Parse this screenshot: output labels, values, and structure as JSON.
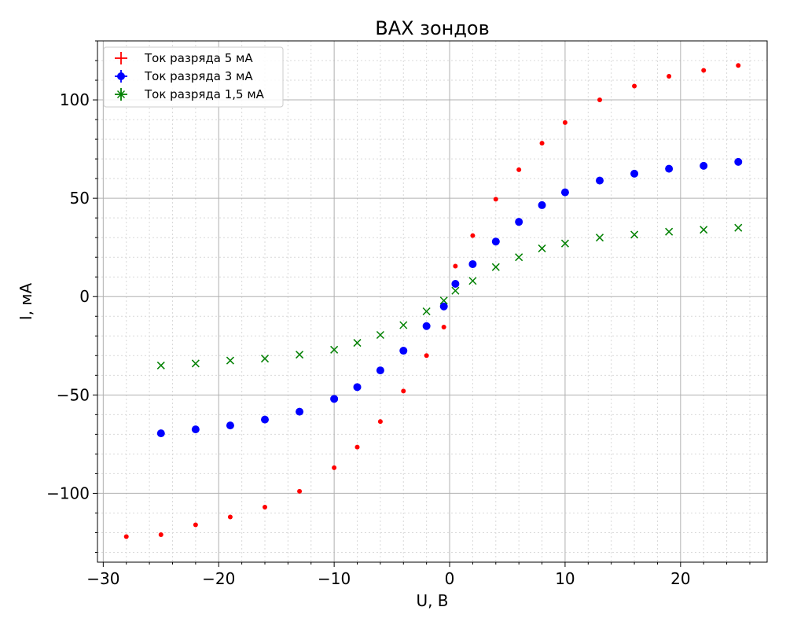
{
  "chart_data": {
    "type": "scatter",
    "title": "ВАХ зондов",
    "xlabel": "U, В",
    "ylabel": "I, мА",
    "xlim": [
      -30.5,
      27.5
    ],
    "ylim": [
      -135,
      130
    ],
    "x_ticks": [
      -30,
      -20,
      -10,
      0,
      10,
      20
    ],
    "x_tick_labels": [
      "−30",
      "−20",
      "−10",
      "0",
      "10",
      "20"
    ],
    "y_ticks": [
      -100,
      -50,
      0,
      50,
      100
    ],
    "y_tick_labels": [
      "−100",
      "−50",
      "0",
      "50",
      "100"
    ],
    "grid": true,
    "minor_grid": true,
    "legend_position": "top-left",
    "series": [
      {
        "name": "Ток разряда 5 мА",
        "color": "#ff0000",
        "marker": "small-dot",
        "legend_marker": "plus-errorbar",
        "points": [
          [
            -28,
            -122
          ],
          [
            -25,
            -121
          ],
          [
            -22,
            -116
          ],
          [
            -19,
            -112
          ],
          [
            -16,
            -107
          ],
          [
            -13,
            -99
          ],
          [
            -10,
            -87
          ],
          [
            -8,
            -76.5
          ],
          [
            -6,
            -63.5
          ],
          [
            -4,
            -48
          ],
          [
            -2,
            -30
          ],
          [
            -0.5,
            -15.5
          ],
          [
            0.5,
            15.5
          ],
          [
            2,
            31
          ],
          [
            4,
            49.5
          ],
          [
            6,
            64.5
          ],
          [
            8,
            78
          ],
          [
            10,
            88.5
          ],
          [
            13,
            100
          ],
          [
            16,
            107
          ],
          [
            19,
            112
          ],
          [
            22,
            115
          ],
          [
            25,
            117.5
          ]
        ]
      },
      {
        "name": "Ток разряда 3 мА",
        "color": "#0000ff",
        "marker": "circle",
        "legend_marker": "circle-errorbar",
        "points": [
          [
            -25,
            -69.5
          ],
          [
            -22,
            -67.5
          ],
          [
            -19,
            -65.5
          ],
          [
            -16,
            -62.5
          ],
          [
            -13,
            -58.5
          ],
          [
            -10,
            -52
          ],
          [
            -8,
            -46
          ],
          [
            -6,
            -37.5
          ],
          [
            -4,
            -27.5
          ],
          [
            -2,
            -15
          ],
          [
            -0.5,
            -5
          ],
          [
            0.5,
            6.5
          ],
          [
            2,
            16.5
          ],
          [
            4,
            28
          ],
          [
            6,
            38
          ],
          [
            8,
            46.5
          ],
          [
            10,
            53
          ],
          [
            13,
            59
          ],
          [
            16,
            62.5
          ],
          [
            19,
            65
          ],
          [
            22,
            66.5
          ],
          [
            25,
            68.5
          ]
        ]
      },
      {
        "name": "Ток разряда 1,5 мА",
        "color": "#008000",
        "marker": "x",
        "legend_marker": "x-errorbar",
        "points": [
          [
            -25,
            -35
          ],
          [
            -22,
            -34
          ],
          [
            -19,
            -32.5
          ],
          [
            -16,
            -31.5
          ],
          [
            -13,
            -29.5
          ],
          [
            -10,
            -27
          ],
          [
            -8,
            -23.5
          ],
          [
            -6,
            -19.5
          ],
          [
            -4,
            -14.5
          ],
          [
            -2,
            -7.5
          ],
          [
            -0.5,
            -2
          ],
          [
            0.5,
            3
          ],
          [
            2,
            8
          ],
          [
            4,
            15
          ],
          [
            6,
            20
          ],
          [
            8,
            24.5
          ],
          [
            10,
            27
          ],
          [
            13,
            30
          ],
          [
            16,
            31.5
          ],
          [
            19,
            33
          ],
          [
            22,
            34
          ],
          [
            25,
            35
          ]
        ]
      }
    ]
  }
}
